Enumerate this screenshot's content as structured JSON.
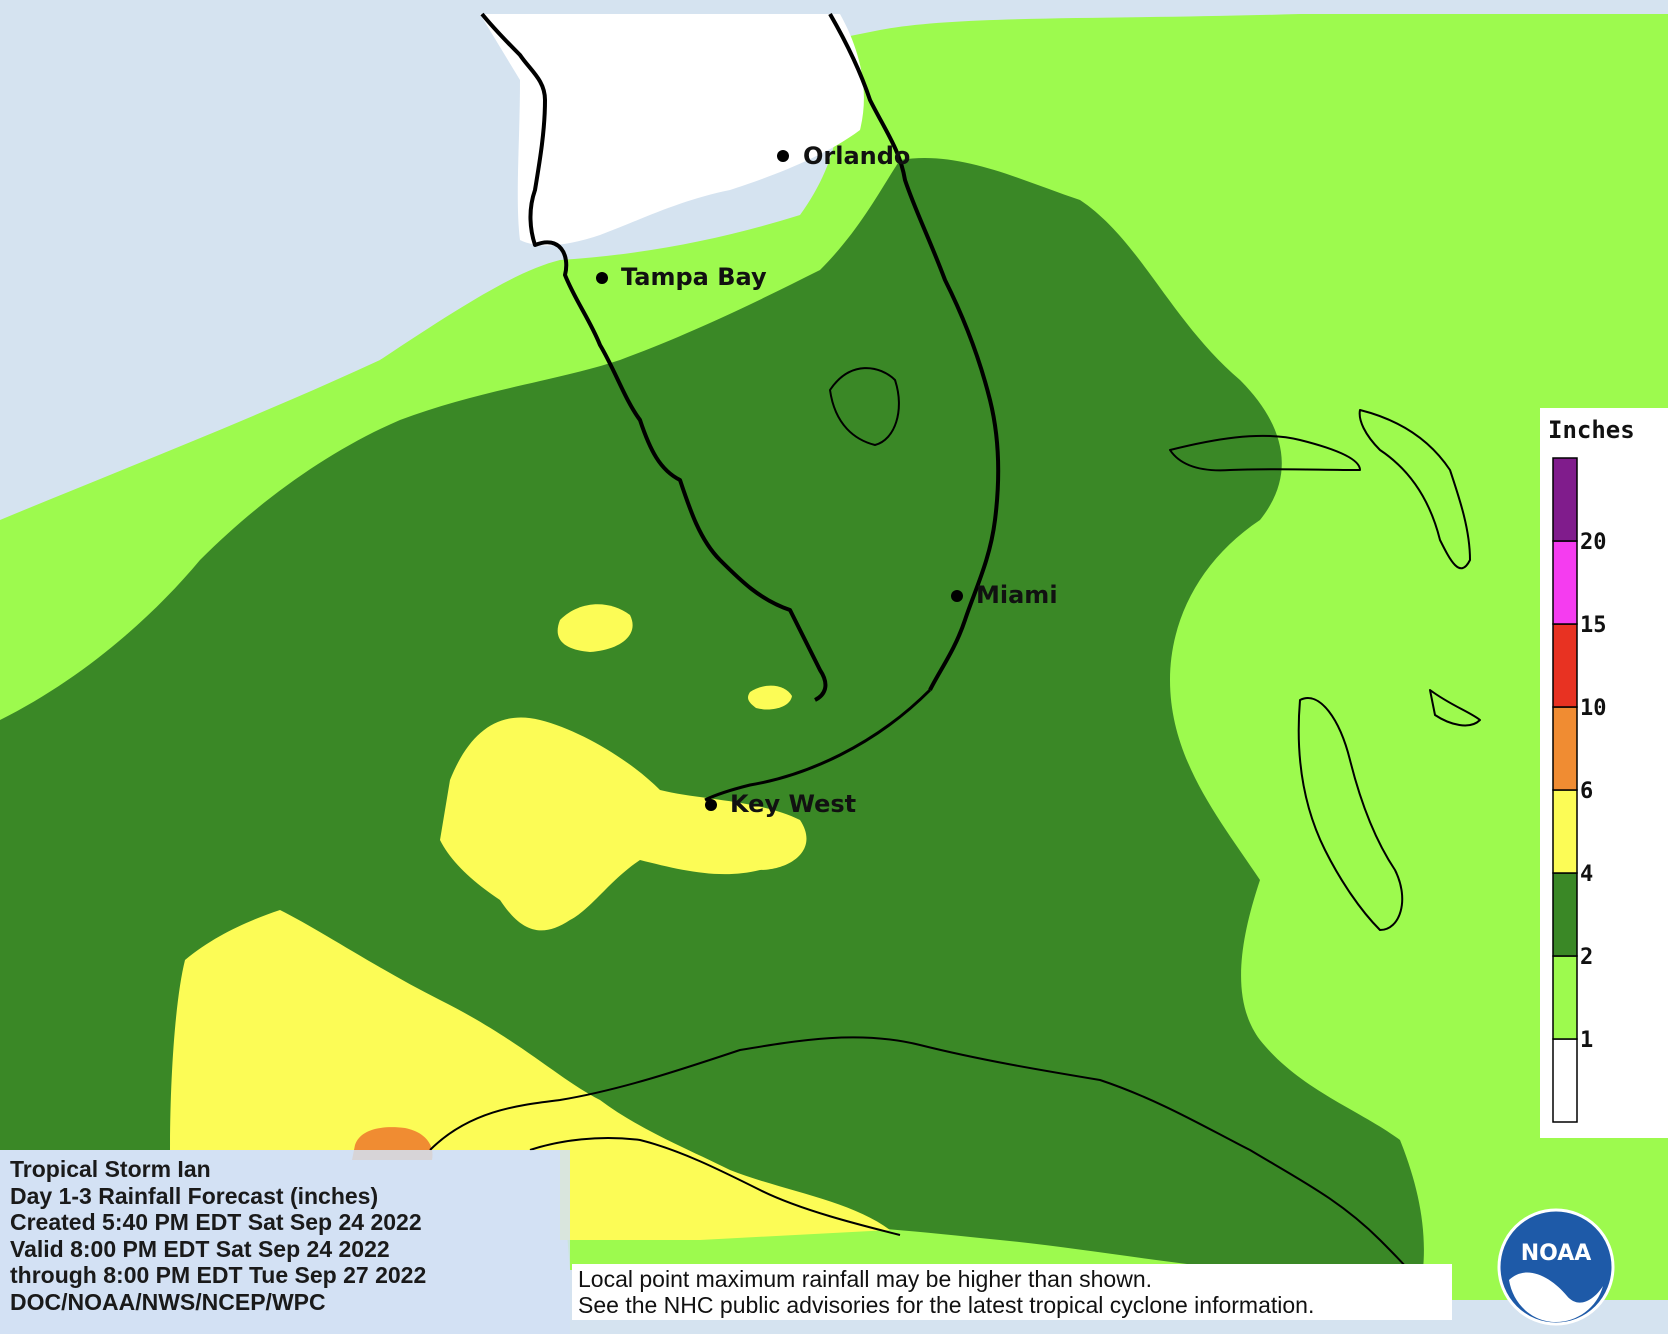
{
  "map": {
    "colors": {
      "ocean_none": "#d5e3f0",
      "land_none": "#ffffff",
      "band_1_2": "#9dfa4e",
      "band_2_4": "#3a8826",
      "band_4_6": "#fcfc56",
      "band_6_10": "#f08c32",
      "coastline": "#000000"
    },
    "cities": [
      {
        "name": "Orlando"
      },
      {
        "name": "Tampa Bay"
      },
      {
        "name": "Miami"
      },
      {
        "name": "Key West"
      }
    ]
  },
  "legend": {
    "title": "Inches",
    "bins": [
      {
        "color": "#ffffff"
      },
      {
        "color": "#9dfa4e",
        "label": "1"
      },
      {
        "color": "#3a8826",
        "label": "2"
      },
      {
        "color": "#fcfc56",
        "label": "4"
      },
      {
        "color": "#f08c32",
        "label": "6"
      },
      {
        "color": "#e83222",
        "label": "10"
      },
      {
        "color": "#f53cf0",
        "label": "15"
      },
      {
        "color": "#801c8c",
        "label": "20"
      }
    ]
  },
  "info": {
    "lines": [
      "Tropical Storm Ian",
      "Day 1-3 Rainfall Forecast (inches)",
      "Created 5:40 PM EDT Sat Sep 24 2022",
      "Valid 8:00 PM EDT Sat Sep 24 2022",
      "through 8:00 PM EDT Tue Sep 27 2022",
      "DOC/NOAA/NWS/NCEP/WPC"
    ]
  },
  "disclaimer": {
    "line1": "Local point maximum rainfall may be higher than shown.",
    "line2": "See the NHC public advisories for the latest tropical cyclone information."
  },
  "logo": {
    "text": "NOAA"
  }
}
